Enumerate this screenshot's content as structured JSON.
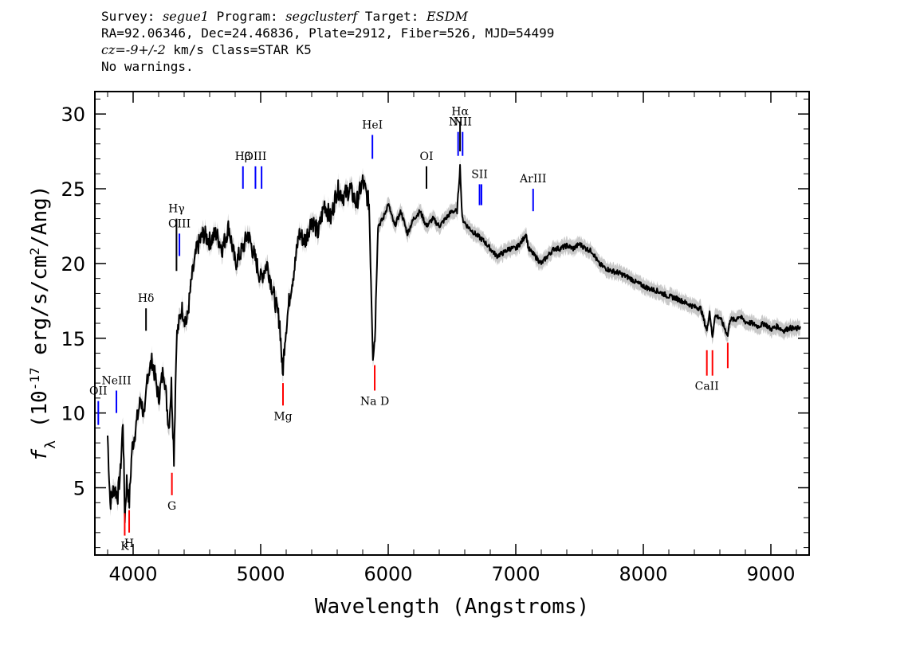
{
  "header": {
    "survey_label": "Survey:",
    "survey": "segue1",
    "program_label": "Program:",
    "program": "segclusterf",
    "target_label": "Target:",
    "target": "ESDM",
    "line2": "RA=92.06346, Dec=24.46836, Plate=2912, Fiber=526, MJD=54499",
    "cz": "cz=-9+/-2",
    "cz_rest": "km/s Class=STAR K5",
    "warnings": "No warnings."
  },
  "chart_data": {
    "type": "line",
    "xlabel": "Wavelength (Angstroms)",
    "ylabel": "f_λ (10^-17 erg/s/cm^2/Ang)",
    "xlim": [
      3700,
      9300
    ],
    "ylim": [
      0.5,
      31.5
    ],
    "x_ticks": [
      4000,
      5000,
      6000,
      7000,
      8000,
      9000
    ],
    "y_ticks": [
      5,
      10,
      15,
      20,
      25,
      30
    ],
    "series": [
      {
        "color": "#000000",
        "points": [
          [
            3800,
            8.5
          ],
          [
            3820,
            4
          ],
          [
            3850,
            5
          ],
          [
            3880,
            4.5
          ],
          [
            3900,
            6
          ],
          [
            3920,
            9.5
          ],
          [
            3935,
            3
          ],
          [
            3950,
            5.5
          ],
          [
            3970,
            4
          ],
          [
            3990,
            7.5
          ],
          [
            4020,
            9
          ],
          [
            4060,
            11
          ],
          [
            4090,
            9.5
          ],
          [
            4110,
            12.5
          ],
          [
            4150,
            13.5
          ],
          [
            4200,
            11
          ],
          [
            4240,
            13
          ],
          [
            4280,
            9
          ],
          [
            4300,
            12
          ],
          [
            4320,
            7
          ],
          [
            4340,
            15
          ],
          [
            4380,
            17
          ],
          [
            4420,
            16
          ],
          [
            4460,
            19
          ],
          [
            4500,
            21
          ],
          [
            4550,
            22
          ],
          [
            4600,
            21.5
          ],
          [
            4650,
            22
          ],
          [
            4700,
            21
          ],
          [
            4750,
            22.5
          ],
          [
            4800,
            20
          ],
          [
            4860,
            21
          ],
          [
            4900,
            22
          ],
          [
            4950,
            20.5
          ],
          [
            5000,
            19
          ],
          [
            5050,
            20
          ],
          [
            5100,
            18
          ],
          [
            5150,
            16
          ],
          [
            5172,
            12.5
          ],
          [
            5190,
            15
          ],
          [
            5230,
            18
          ],
          [
            5270,
            20
          ],
          [
            5300,
            22
          ],
          [
            5350,
            21.5
          ],
          [
            5400,
            23
          ],
          [
            5450,
            22
          ],
          [
            5500,
            24
          ],
          [
            5550,
            23
          ],
          [
            5600,
            25
          ],
          [
            5650,
            24.5
          ],
          [
            5700,
            25
          ],
          [
            5750,
            24
          ],
          [
            5800,
            25.5
          ],
          [
            5850,
            24
          ],
          [
            5880,
            14
          ],
          [
            5895,
            15
          ],
          [
            5920,
            22.5
          ],
          [
            5960,
            23
          ],
          [
            6000,
            24
          ],
          [
            6050,
            22.5
          ],
          [
            6100,
            23.5
          ],
          [
            6150,
            22
          ],
          [
            6200,
            23
          ],
          [
            6250,
            23.5
          ],
          [
            6300,
            22.5
          ],
          [
            6350,
            23
          ],
          [
            6400,
            22.5
          ],
          [
            6450,
            23
          ],
          [
            6500,
            23.5
          ],
          [
            6540,
            23.5
          ],
          [
            6563,
            26.5
          ],
          [
            6580,
            23
          ],
          [
            6620,
            22.5
          ],
          [
            6680,
            22
          ],
          [
            6750,
            21.5
          ],
          [
            6800,
            21
          ],
          [
            6850,
            20.5
          ],
          [
            6900,
            20.7
          ],
          [
            6950,
            21
          ],
          [
            7000,
            21
          ],
          [
            7050,
            21.5
          ],
          [
            7080,
            22
          ],
          [
            7100,
            21
          ],
          [
            7150,
            20.5
          ],
          [
            7200,
            20
          ],
          [
            7250,
            20.5
          ],
          [
            7300,
            21
          ],
          [
            7350,
            21
          ],
          [
            7400,
            21.2
          ],
          [
            7450,
            21
          ],
          [
            7500,
            21.3
          ],
          [
            7550,
            21
          ],
          [
            7600,
            20.8
          ],
          [
            7650,
            20
          ],
          [
            7700,
            19.7
          ],
          [
            7750,
            19.5
          ],
          [
            7800,
            19.4
          ],
          [
            7850,
            19.2
          ],
          [
            7900,
            19
          ],
          [
            7950,
            18.7
          ],
          [
            8000,
            18.5
          ],
          [
            8050,
            18.3
          ],
          [
            8100,
            18.2
          ],
          [
            8150,
            18
          ],
          [
            8200,
            17.8
          ],
          [
            8250,
            17.7
          ],
          [
            8300,
            17.5
          ],
          [
            8350,
            17.3
          ],
          [
            8400,
            17.1
          ],
          [
            8450,
            17
          ],
          [
            8498,
            15.5
          ],
          [
            8520,
            16.8
          ],
          [
            8542,
            15
          ],
          [
            8560,
            16.5
          ],
          [
            8600,
            16.4
          ],
          [
            8662,
            15.2
          ],
          [
            8680,
            16.3
          ],
          [
            8720,
            16.2
          ],
          [
            8750,
            16.5
          ],
          [
            8800,
            16.1
          ],
          [
            8850,
            16
          ],
          [
            8900,
            15.8
          ],
          [
            8950,
            16
          ],
          [
            9000,
            15.6
          ],
          [
            9050,
            15.8
          ],
          [
            9100,
            15.5
          ],
          [
            9150,
            15.7
          ],
          [
            9200,
            15.6
          ],
          [
            9230,
            15.8
          ]
        ]
      }
    ],
    "emission_lines": [
      {
        "label": "OII",
        "x": 3727,
        "y0": 9.2,
        "y1": 10.8,
        "color": "#0000ff"
      },
      {
        "label": "NeIII",
        "x": 3869,
        "y0": 10,
        "y1": 11.5,
        "color": "#0000ff"
      },
      {
        "label": "Hδ",
        "x": 4101,
        "y0": 15.5,
        "y1": 17,
        "color": "#000000"
      },
      {
        "label": "Hγ",
        "x": 4340,
        "y0": 19.5,
        "y1": 23,
        "color": "#000000"
      },
      {
        "label": "OIII",
        "x": 4363,
        "y0": 20.5,
        "y1": 22,
        "color": "#0000ff"
      },
      {
        "label": "Hβ",
        "x": 4861,
        "y0": 25,
        "y1": 26.5,
        "color": "#0000ff"
      },
      {
        "label": "OIII",
        "x": 4959,
        "y0": 25,
        "y1": 26.5,
        "color": "#0000ff"
      },
      {
        "label": "",
        "x": 5007,
        "y0": 25,
        "y1": 26.5,
        "color": "#0000ff"
      },
      {
        "label": "HeI",
        "x": 5876,
        "y0": 27,
        "y1": 28.6,
        "color": "#0000ff"
      },
      {
        "label": "OI",
        "x": 6300,
        "y0": 25,
        "y1": 26.5,
        "color": "#000000"
      },
      {
        "label": "NII",
        "x": 6548,
        "y0": 27.2,
        "y1": 28.8,
        "color": "#0000ff"
      },
      {
        "label": "Hα",
        "x": 6563,
        "y0": 27.5,
        "y1": 29.5,
        "color": "#000000"
      },
      {
        "label": "NII",
        "x": 6583,
        "y0": 27.2,
        "y1": 28.8,
        "color": "#0000ff"
      },
      {
        "label": "SII",
        "x": 6716,
        "y0": 23.9,
        "y1": 25.3,
        "color": "#0000ff"
      },
      {
        "label": "",
        "x": 6731,
        "y0": 23.9,
        "y1": 25.3,
        "color": "#0000ff"
      },
      {
        "label": "ArIII",
        "x": 7136,
        "y0": 23.5,
        "y1": 25,
        "color": "#0000ff"
      }
    ],
    "absorption_lines": [
      {
        "label": "K",
        "x": 3934,
        "y0": 1.8,
        "y1": 3.3,
        "color": "#ff0000"
      },
      {
        "label": "H",
        "x": 3969,
        "y0": 2,
        "y1": 3.5,
        "color": "#ff0000"
      },
      {
        "label": "G",
        "x": 4304,
        "y0": 4.5,
        "y1": 6,
        "color": "#ff0000"
      },
      {
        "label": "Mg",
        "x": 5175,
        "y0": 10.5,
        "y1": 12,
        "color": "#ff0000"
      },
      {
        "label": "Na D",
        "x": 5894,
        "y0": 11.5,
        "y1": 13.2,
        "color": "#ff0000"
      },
      {
        "label": "CaII",
        "x": 8498,
        "y0": 12.5,
        "y1": 14.2,
        "color": "#ff0000"
      },
      {
        "label": "",
        "x": 8542,
        "y0": 12.5,
        "y1": 14.2,
        "color": "#ff0000"
      },
      {
        "label": "",
        "x": 8662,
        "y0": 13,
        "y1": 14.7,
        "color": "#ff0000"
      }
    ]
  }
}
